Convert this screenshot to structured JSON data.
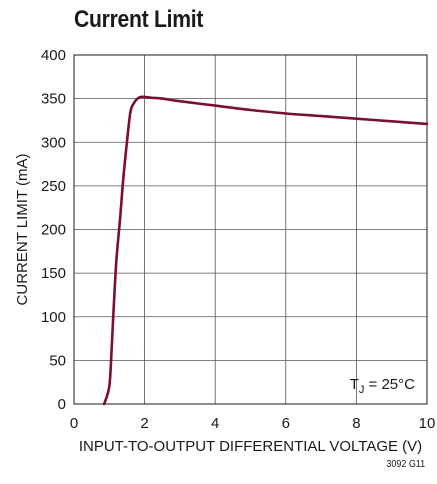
{
  "chart_data": {
    "type": "line",
    "title": "Current Limit",
    "xlabel": "INPUT-TO-OUTPUT DIFFERENTIAL VOLTAGE (V)",
    "ylabel": "CURRENT LIMIT (mA)",
    "xlim": [
      0,
      10
    ],
    "ylim": [
      0,
      400
    ],
    "x_ticks": [
      0,
      2,
      4,
      6,
      8,
      10
    ],
    "y_ticks": [
      0,
      50,
      100,
      150,
      200,
      250,
      300,
      350,
      400
    ],
    "grid": true,
    "annotation": {
      "prefix": "T",
      "subscript": "J",
      "suffix": " = 25°C"
    },
    "figure_id": "3092 G11",
    "line_color": "#7a1030",
    "series": [
      {
        "x": [
          0.85,
          0.9,
          1.0,
          1.05,
          1.1,
          1.15,
          1.2,
          1.3,
          1.4,
          1.5,
          1.6,
          1.7,
          1.8,
          1.9,
          2.0,
          2.2,
          2.5,
          3.0,
          4.0,
          5.0,
          6.0,
          7.0,
          8.0,
          9.0,
          10.0
        ],
        "y": [
          0,
          5,
          20,
          50,
          90,
          130,
          165,
          210,
          260,
          300,
          335,
          345,
          350,
          352,
          352,
          351,
          350,
          347,
          342,
          337,
          333,
          330,
          327,
          324,
          321
        ]
      }
    ]
  }
}
